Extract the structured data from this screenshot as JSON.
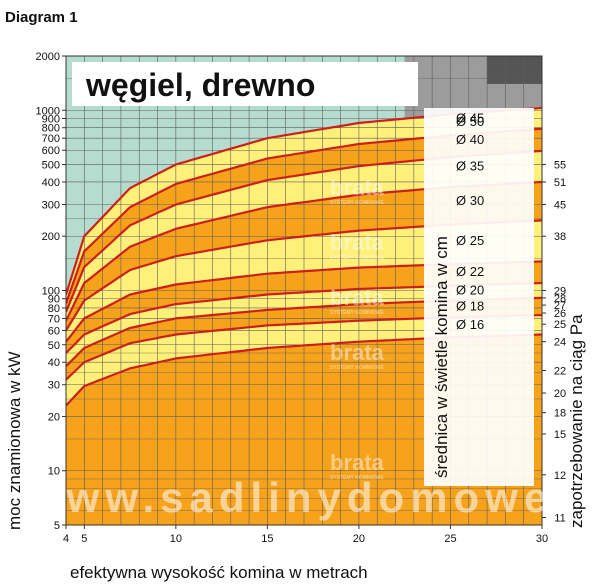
{
  "chart_data": {
    "type": "area",
    "title": "Diagram 1",
    "subtitle": "węgiel, drewno",
    "xlabel": "efektywna wysokość komina w metrach",
    "ylabel": "moc znamionowa w kW",
    "y2label": "zapotrzebowanie na ciąg Pa",
    "band_axis_label": "średnica w świetle komina w cm",
    "xlim": [
      4,
      30
    ],
    "ylim": [
      5,
      2000
    ],
    "y_scale": "log",
    "x_ticks": [
      4,
      5,
      10,
      15,
      20,
      25,
      30
    ],
    "x_tick_labels": [
      "4",
      "5",
      "10",
      "15",
      "20",
      "25",
      "30"
    ],
    "y_ticks": [
      5,
      10,
      20,
      30,
      40,
      50,
      60,
      70,
      80,
      90,
      100,
      200,
      300,
      400,
      500,
      600,
      700,
      800,
      900,
      1000,
      2000
    ],
    "y_tick_labels": [
      "5",
      "10",
      "20",
      "30",
      "40",
      "50",
      "60",
      "70",
      "80",
      "90",
      "100",
      "200",
      "300",
      "400",
      "500",
      "600",
      "700",
      "800",
      "900",
      "1000",
      "2000"
    ],
    "y2_ticks": [
      {
        "label": "11",
        "at_kw": 5.5
      },
      {
        "label": "12",
        "at_kw": 9.5
      },
      {
        "label": "15",
        "at_kw": 16
      },
      {
        "label": "18",
        "at_kw": 21
      },
      {
        "label": "20",
        "at_kw": 27
      },
      {
        "label": "22",
        "at_kw": 36
      },
      {
        "label": "24",
        "at_kw": 52
      },
      {
        "label": "25",
        "at_kw": 65
      },
      {
        "label": "26",
        "at_kw": 75
      },
      {
        "label": "27",
        "at_kw": 83
      },
      {
        "label": "28",
        "at_kw": 91
      },
      {
        "label": "29",
        "at_kw": 100
      },
      {
        "label": "38",
        "at_kw": 200
      },
      {
        "label": "45",
        "at_kw": 300
      },
      {
        "label": "51",
        "at_kw": 400
      },
      {
        "label": "55",
        "at_kw": 500
      }
    ],
    "series": [
      {
        "name": "Ø 16",
        "x": [
          4,
          5,
          7.5,
          10,
          15,
          20,
          25,
          30
        ],
        "y": [
          23,
          29.5,
          37,
          42,
          48,
          52,
          55,
          57
        ]
      },
      {
        "name": "Ø 18",
        "x": [
          4,
          5,
          7.5,
          10,
          15,
          20,
          25,
          30
        ],
        "y": [
          32,
          40,
          51,
          57,
          64,
          68,
          71,
          73
        ]
      },
      {
        "name": "Ø 20",
        "x": [
          4,
          5,
          7.5,
          10,
          15,
          20,
          25,
          30
        ],
        "y": [
          38,
          48,
          62,
          70,
          78,
          84,
          88,
          91
        ]
      },
      {
        "name": "Ø 22",
        "x": [
          4,
          5,
          7.5,
          10,
          15,
          20,
          25,
          30
        ],
        "y": [
          45,
          57,
          74,
          84,
          95,
          102,
          106,
          110
        ]
      },
      {
        "name": "Ø 25",
        "x": [
          4,
          5,
          7.5,
          10,
          15,
          20,
          25,
          30
        ],
        "y": [
          52,
          70,
          95,
          108,
          124,
          134,
          140,
          145
        ]
      },
      {
        "name": "Ø 30",
        "x": [
          4,
          5,
          7.5,
          10,
          15,
          20,
          25,
          30
        ],
        "y": [
          60,
          88,
          130,
          155,
          190,
          215,
          232,
          245
        ]
      },
      {
        "name": "Ø 35",
        "x": [
          4,
          5,
          7.5,
          10,
          15,
          20,
          25,
          30
        ],
        "y": [
          68,
          110,
          175,
          220,
          290,
          340,
          375,
          400
        ]
      },
      {
        "name": "Ø 40",
        "x": [
          4,
          5,
          7.5,
          10,
          15,
          20,
          25,
          30
        ],
        "y": [
          76,
          135,
          230,
          300,
          410,
          490,
          550,
          595
        ]
      },
      {
        "name": "Ø 45",
        "x": [
          4,
          5,
          7.5,
          10,
          15,
          20,
          25,
          30
        ],
        "y": [
          85,
          165,
          290,
          390,
          540,
          650,
          725,
          790
        ]
      },
      {
        "name": "Ø 50",
        "x": [
          4,
          5,
          7.5,
          10,
          15,
          20,
          25,
          30
        ],
        "y": [
          95,
          200,
          370,
          500,
          700,
          850,
          950,
          1030
        ]
      }
    ],
    "grid": true,
    "colors": {
      "orange": "#f7a21b",
      "yellow": "#fff07a",
      "curve": "#cc1f1a",
      "teal": "#b5dccf",
      "gray": "#9c9c9c",
      "dark_gray": "#555555",
      "grid": "#5e5e5e"
    }
  },
  "watermarks": {
    "brand": "brata",
    "brand_sub": "SYSTEMY KOMINOWE",
    "site": "www.sadlinydomowe.pl"
  }
}
